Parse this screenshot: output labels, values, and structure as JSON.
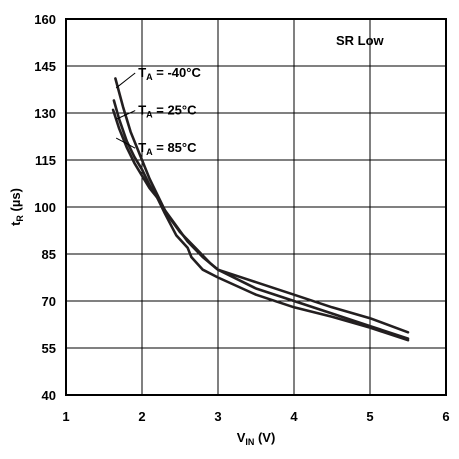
{
  "chart_data": {
    "type": "line",
    "title": "",
    "annotation": "SR Low",
    "xlabel": {
      "main": "V",
      "sub": "IN",
      "unit": " (V)"
    },
    "ylabel": {
      "main": "t",
      "sub": "R",
      "unit": " (µs)"
    },
    "xlim": [
      1,
      6
    ],
    "ylim": [
      40,
      160
    ],
    "xticks": [
      1,
      2,
      3,
      4,
      5,
      6
    ],
    "yticks": [
      40,
      55,
      70,
      85,
      100,
      115,
      130,
      145,
      160
    ],
    "xtick_labels": [
      "1",
      "2",
      "3",
      "4",
      "5",
      "6"
    ],
    "ytick_labels": [
      "40",
      "55",
      "70",
      "85",
      "100",
      "115",
      "130",
      "145",
      "160"
    ],
    "grid": true,
    "line_color": "#231f20",
    "series": [
      {
        "name": "TA = -40°C",
        "label_prefix": "T",
        "label_sub": "A",
        "label_rest": " = -40°C",
        "points": [
          [
            1.65,
            141
          ],
          [
            1.75,
            132
          ],
          [
            1.85,
            124
          ],
          [
            2.0,
            115
          ],
          [
            2.1,
            109
          ],
          [
            2.2,
            104
          ],
          [
            2.3,
            99
          ],
          [
            2.45,
            94
          ],
          [
            2.6,
            89
          ],
          [
            2.8,
            84
          ],
          [
            3.0,
            80
          ],
          [
            3.5,
            76
          ],
          [
            4.0,
            72
          ],
          [
            4.5,
            68
          ],
          [
            5.0,
            64.5
          ],
          [
            5.5,
            60
          ]
        ]
      },
      {
        "name": "TA = 25°C",
        "label_prefix": "T",
        "label_sub": "A",
        "label_rest": " = 25°C",
        "points": [
          [
            1.63,
            134
          ],
          [
            1.7,
            128
          ],
          [
            1.8,
            121
          ],
          [
            1.9,
            116
          ],
          [
            2.0,
            112
          ],
          [
            2.1,
            107
          ],
          [
            2.2,
            103
          ],
          [
            2.35,
            97
          ],
          [
            2.5,
            92
          ],
          [
            2.7,
            87
          ],
          [
            2.9,
            82
          ],
          [
            3.0,
            80
          ],
          [
            3.5,
            74
          ],
          [
            4.0,
            70
          ],
          [
            4.5,
            66
          ],
          [
            5.0,
            62
          ],
          [
            5.5,
            58
          ]
        ]
      },
      {
        "name": "TA = 85°C",
        "label_prefix": "T",
        "label_sub": "A",
        "label_rest": " = 85°C",
        "points": [
          [
            1.62,
            131
          ],
          [
            1.7,
            125
          ],
          [
            1.8,
            119
          ],
          [
            1.9,
            114
          ],
          [
            2.0,
            110
          ],
          [
            2.1,
            106
          ],
          [
            2.2,
            103
          ],
          [
            2.3,
            98
          ],
          [
            2.45,
            91
          ],
          [
            2.6,
            87
          ],
          [
            2.65,
            84
          ],
          [
            2.8,
            80
          ],
          [
            3.0,
            77.5
          ],
          [
            3.5,
            72
          ],
          [
            4.0,
            68
          ],
          [
            4.5,
            65
          ],
          [
            5.0,
            61.5
          ],
          [
            5.5,
            57.5
          ]
        ]
      }
    ],
    "label_placement": [
      {
        "x": 1.95,
        "y": 141.5,
        "anchor_x": 1.66,
        "anchor_y": 138
      },
      {
        "x": 1.95,
        "y": 129.5,
        "anchor_x": 1.66,
        "anchor_y": 128
      },
      {
        "x": 1.95,
        "y": 117.5,
        "anchor_x": 1.66,
        "anchor_y": 122
      }
    ]
  }
}
